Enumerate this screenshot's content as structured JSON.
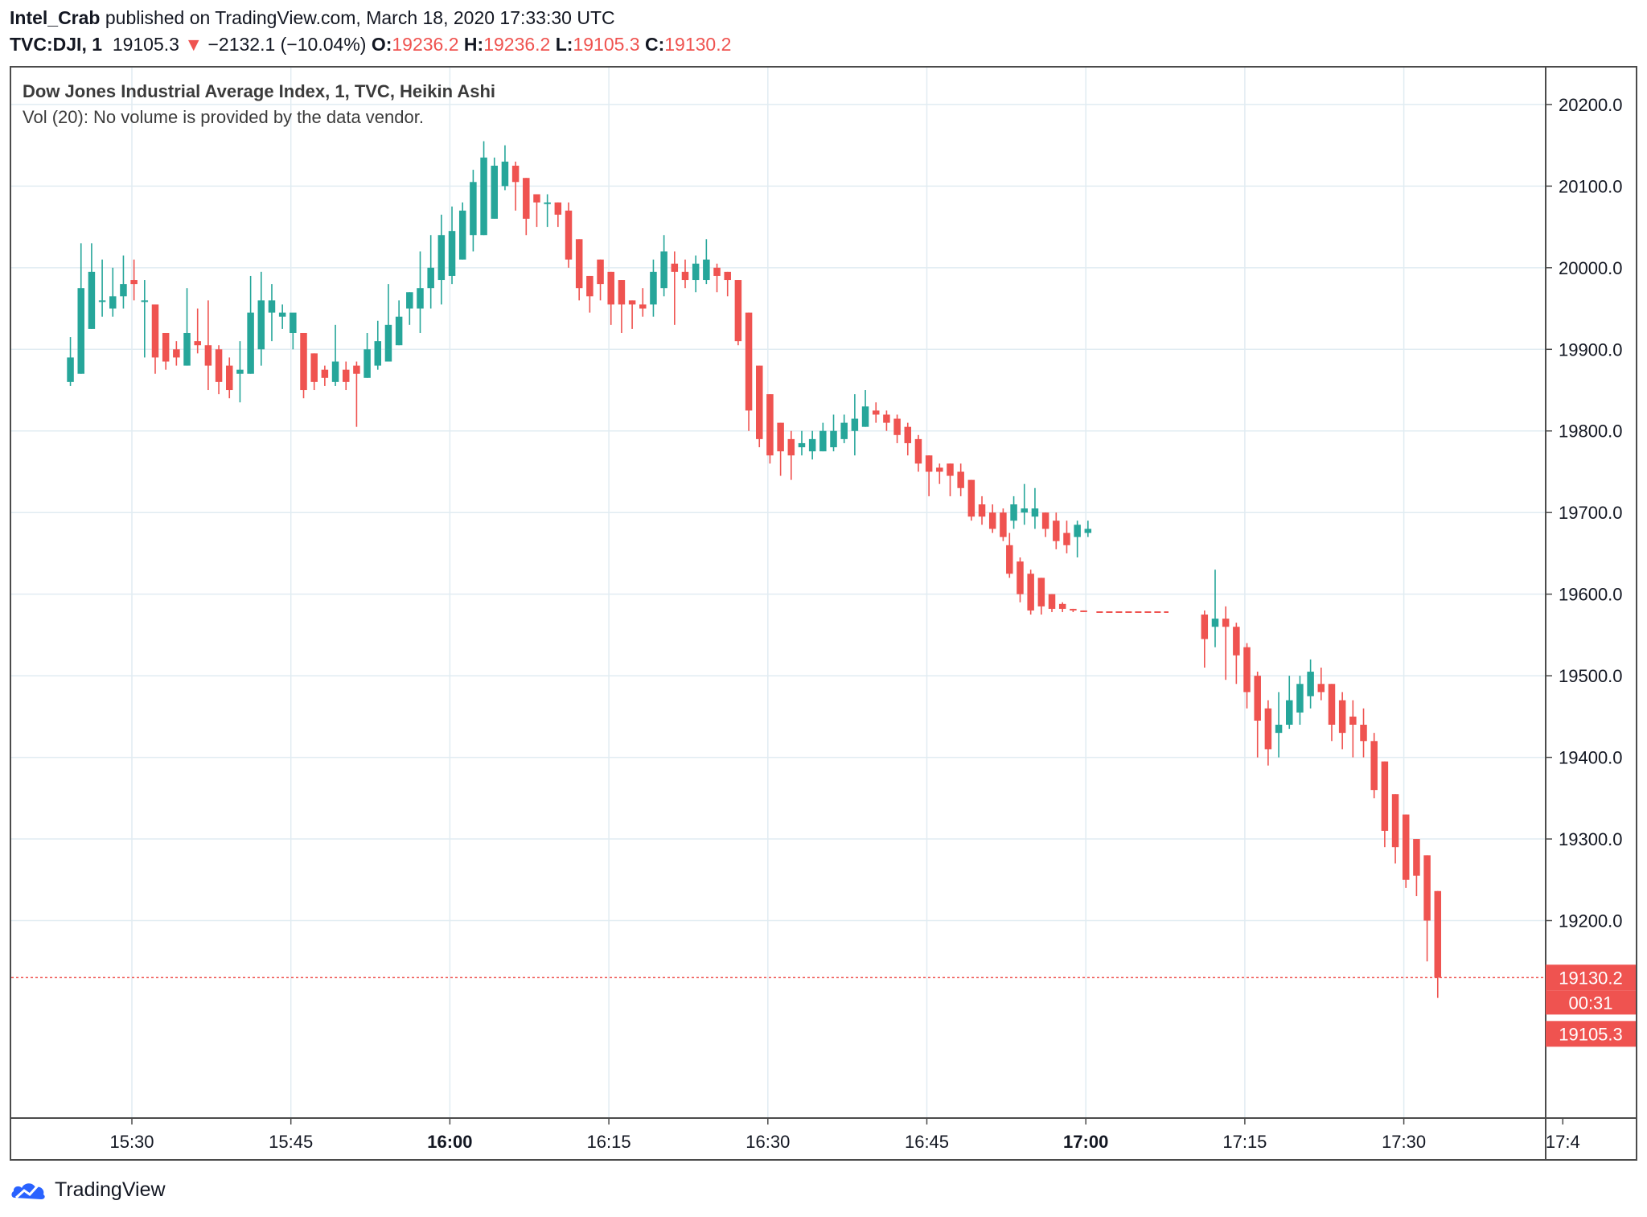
{
  "header": {
    "author": "Intel_Crab",
    "published_text": " published on TradingView.com, March 18, 2020 17:33:30 UTC",
    "symbol": "TVC:DJI, 1",
    "last": "19105.3",
    "change_arrow": "▼",
    "change": "−2132.1 (−10.04%)",
    "open_label": "O:",
    "open": "19236.2",
    "high_label": "H:",
    "high": "19236.2",
    "low_label": "L:",
    "low": "19105.3",
    "close_label": "C:",
    "close": "19130.2"
  },
  "legend": {
    "title": "Dow Jones Industrial Average Index, 1, TVC, Heikin Ashi",
    "volume": "Vol (20): No volume is provided by the data vendor."
  },
  "badges": {
    "price": "19130.2",
    "countdown": "00:31",
    "low": "19105.3"
  },
  "footer": {
    "brand": "TradingView"
  },
  "colors": {
    "up": "#26a69a",
    "down": "#ef5350",
    "grid": "#e1ecf2",
    "text": "#131722"
  },
  "chart_data": {
    "type": "candlestick",
    "title": "Dow Jones Industrial Average Index, 1, TVC, Heikin Ashi",
    "y_ticks": [
      20200,
      20100,
      20000,
      19900,
      19800,
      19700,
      19600,
      19500,
      19400,
      19300,
      19200
    ],
    "ylim": [
      19000,
      20300
    ],
    "x_ticks": [
      {
        "t": 930,
        "label": "15:30",
        "bold": false
      },
      {
        "t": 945,
        "label": "15:45",
        "bold": false
      },
      {
        "t": 960,
        "label": "16:00",
        "bold": true
      },
      {
        "t": 975,
        "label": "16:15",
        "bold": false
      },
      {
        "t": 990,
        "label": "16:30",
        "bold": false
      },
      {
        "t": 1005,
        "label": "16:45",
        "bold": false
      },
      {
        "t": 1020,
        "label": "17:00",
        "bold": true
      },
      {
        "t": 1035,
        "label": "17:15",
        "bold": false
      },
      {
        "t": 1050,
        "label": "17:30",
        "bold": false
      },
      {
        "t": 1065,
        "label": "17:4",
        "bold": false
      }
    ],
    "xlim": [
      924.2,
      1066.2
    ],
    "last_price_line": 19130.2,
    "flat_segment": {
      "t_start": 1019,
      "t_end": 1029,
      "price": 19578
    },
    "time_unit": "minutes since 00:00 (1-minute bars)",
    "candles": [
      {
        "t": 924.2,
        "o": 19860,
        "h": 19915,
        "l": 19855,
        "c": 19890
      },
      {
        "t": 925.2,
        "o": 19870,
        "h": 20030,
        "l": 19870,
        "c": 19975
      },
      {
        "t": 926.2,
        "o": 19925,
        "h": 20030,
        "l": 19925,
        "c": 19995
      },
      {
        "t": 927.2,
        "o": 19960,
        "h": 20010,
        "l": 19940,
        "c": 19960
      },
      {
        "t": 928.2,
        "o": 19950,
        "h": 20000,
        "l": 19940,
        "c": 19965
      },
      {
        "t": 929.2,
        "o": 19965,
        "h": 20015,
        "l": 19950,
        "c": 19980
      },
      {
        "t": 930.2,
        "o": 19985,
        "h": 20010,
        "l": 19960,
        "c": 19980
      },
      {
        "t": 931.2,
        "o": 19960,
        "h": 19985,
        "l": 19890,
        "c": 19960
      },
      {
        "t": 932.2,
        "o": 19955,
        "h": 19955,
        "l": 19870,
        "c": 19890
      },
      {
        "t": 933.2,
        "o": 19920,
        "h": 19920,
        "l": 19875,
        "c": 19885
      },
      {
        "t": 934.2,
        "o": 19900,
        "h": 19910,
        "l": 19880,
        "c": 19890
      },
      {
        "t": 935.2,
        "o": 19880,
        "h": 19975,
        "l": 19880,
        "c": 19920
      },
      {
        "t": 936.2,
        "o": 19910,
        "h": 19950,
        "l": 19895,
        "c": 19905
      },
      {
        "t": 937.2,
        "o": 19905,
        "h": 19960,
        "l": 19850,
        "c": 19880
      },
      {
        "t": 938.2,
        "o": 19900,
        "h": 19905,
        "l": 19845,
        "c": 19860
      },
      {
        "t": 939.2,
        "o": 19880,
        "h": 19890,
        "l": 19840,
        "c": 19850
      },
      {
        "t": 940.2,
        "o": 19870,
        "h": 19910,
        "l": 19835,
        "c": 19875
      },
      {
        "t": 941.2,
        "o": 19870,
        "h": 19990,
        "l": 19870,
        "c": 19945
      },
      {
        "t": 942.2,
        "o": 19900,
        "h": 19995,
        "l": 19880,
        "c": 19960
      },
      {
        "t": 943.2,
        "o": 19945,
        "h": 19980,
        "l": 19910,
        "c": 19960
      },
      {
        "t": 944.2,
        "o": 19940,
        "h": 19955,
        "l": 19925,
        "c": 19945
      },
      {
        "t": 945.2,
        "o": 19920,
        "h": 19940,
        "l": 19900,
        "c": 19945
      },
      {
        "t": 946.2,
        "o": 19920,
        "h": 19920,
        "l": 19840,
        "c": 19850
      },
      {
        "t": 947.2,
        "o": 19895,
        "h": 19895,
        "l": 19850,
        "c": 19860
      },
      {
        "t": 948.2,
        "o": 19875,
        "h": 19880,
        "l": 19855,
        "c": 19865
      },
      {
        "t": 949.2,
        "o": 19860,
        "h": 19930,
        "l": 19855,
        "c": 19885
      },
      {
        "t": 950.2,
        "o": 19875,
        "h": 19885,
        "l": 19850,
        "c": 19860
      },
      {
        "t": 951.2,
        "o": 19880,
        "h": 19885,
        "l": 19805,
        "c": 19870
      },
      {
        "t": 952.2,
        "o": 19865,
        "h": 19920,
        "l": 19865,
        "c": 19900
      },
      {
        "t": 953.2,
        "o": 19880,
        "h": 19935,
        "l": 19875,
        "c": 19910
      },
      {
        "t": 954.2,
        "o": 19885,
        "h": 19980,
        "l": 19885,
        "c": 19930
      },
      {
        "t": 955.2,
        "o": 19905,
        "h": 19960,
        "l": 19905,
        "c": 19940
      },
      {
        "t": 956.2,
        "o": 19950,
        "h": 19970,
        "l": 19930,
        "c": 19970
      },
      {
        "t": 957.2,
        "o": 19950,
        "h": 20020,
        "l": 19920,
        "c": 19975
      },
      {
        "t": 958.2,
        "o": 19975,
        "h": 20040,
        "l": 19950,
        "c": 20000
      },
      {
        "t": 959.2,
        "o": 19985,
        "h": 20065,
        "l": 19955,
        "c": 20040
      },
      {
        "t": 960.2,
        "o": 19990,
        "h": 20075,
        "l": 19980,
        "c": 20045
      },
      {
        "t": 961.2,
        "o": 20010,
        "h": 20080,
        "l": 20010,
        "c": 20070
      },
      {
        "t": 962.2,
        "o": 20040,
        "h": 20120,
        "l": 20020,
        "c": 20105
      },
      {
        "t": 963.2,
        "o": 20040,
        "h": 20155,
        "l": 20040,
        "c": 20135
      },
      {
        "t": 964.2,
        "o": 20060,
        "h": 20135,
        "l": 20060,
        "c": 20125
      },
      {
        "t": 965.2,
        "o": 20100,
        "h": 20150,
        "l": 20095,
        "c": 20130
      },
      {
        "t": 966.2,
        "o": 20125,
        "h": 20130,
        "l": 20070,
        "c": 20105
      },
      {
        "t": 967.2,
        "o": 20110,
        "h": 20110,
        "l": 20040,
        "c": 20060
      },
      {
        "t": 968.2,
        "o": 20090,
        "h": 20090,
        "l": 20050,
        "c": 20080
      },
      {
        "t": 969.2,
        "o": 20080,
        "h": 20090,
        "l": 20050,
        "c": 20080
      },
      {
        "t": 970.2,
        "o": 20080,
        "h": 20080,
        "l": 20050,
        "c": 20065
      },
      {
        "t": 971.2,
        "o": 20070,
        "h": 20080,
        "l": 20000,
        "c": 20010
      },
      {
        "t": 972.2,
        "o": 20035,
        "h": 20035,
        "l": 19960,
        "c": 19975
      },
      {
        "t": 973.2,
        "o": 19990,
        "h": 19990,
        "l": 19945,
        "c": 19965
      },
      {
        "t": 974.2,
        "o": 20010,
        "h": 20010,
        "l": 19960,
        "c": 19980
      },
      {
        "t": 975.2,
        "o": 19995,
        "h": 19995,
        "l": 19930,
        "c": 19955
      },
      {
        "t": 976.2,
        "o": 19985,
        "h": 19985,
        "l": 19920,
        "c": 19955
      },
      {
        "t": 977.2,
        "o": 19960,
        "h": 19960,
        "l": 19925,
        "c": 19955
      },
      {
        "t": 978.2,
        "o": 19955,
        "h": 19975,
        "l": 19940,
        "c": 19950
      },
      {
        "t": 979.2,
        "o": 19955,
        "h": 20010,
        "l": 19940,
        "c": 19995
      },
      {
        "t": 980.2,
        "o": 19975,
        "h": 20040,
        "l": 19965,
        "c": 20020
      },
      {
        "t": 981.2,
        "o": 20005,
        "h": 20020,
        "l": 19930,
        "c": 19995
      },
      {
        "t": 982.2,
        "o": 19995,
        "h": 20010,
        "l": 19975,
        "c": 19985
      },
      {
        "t": 983.2,
        "o": 19985,
        "h": 20015,
        "l": 19970,
        "c": 20005
      },
      {
        "t": 984.2,
        "o": 19985,
        "h": 20035,
        "l": 19980,
        "c": 20010
      },
      {
        "t": 985.2,
        "o": 20000,
        "h": 20005,
        "l": 19970,
        "c": 19990
      },
      {
        "t": 986.2,
        "o": 19995,
        "h": 19995,
        "l": 19965,
        "c": 19985
      },
      {
        "t": 987.2,
        "o": 19985,
        "h": 19985,
        "l": 19905,
        "c": 19910
      },
      {
        "t": 988.2,
        "o": 19945,
        "h": 19945,
        "l": 19800,
        "c": 19825
      },
      {
        "t": 989.2,
        "o": 19880,
        "h": 19880,
        "l": 19780,
        "c": 19790
      },
      {
        "t": 990.2,
        "o": 19845,
        "h": 19845,
        "l": 19760,
        "c": 19770
      },
      {
        "t": 991.2,
        "o": 19810,
        "h": 19810,
        "l": 19745,
        "c": 19775
      },
      {
        "t": 992.2,
        "o": 19790,
        "h": 19800,
        "l": 19740,
        "c": 19770
      },
      {
        "t": 993.2,
        "o": 19780,
        "h": 19800,
        "l": 19770,
        "c": 19785
      },
      {
        "t": 994.2,
        "o": 19775,
        "h": 19800,
        "l": 19765,
        "c": 19790
      },
      {
        "t": 995.2,
        "o": 19775,
        "h": 19810,
        "l": 19775,
        "c": 19800
      },
      {
        "t": 996.2,
        "o": 19780,
        "h": 19820,
        "l": 19775,
        "c": 19800
      },
      {
        "t": 997.2,
        "o": 19790,
        "h": 19820,
        "l": 19785,
        "c": 19810
      },
      {
        "t": 998.2,
        "o": 19800,
        "h": 19845,
        "l": 19770,
        "c": 19815
      },
      {
        "t": 999.2,
        "o": 19805,
        "h": 19850,
        "l": 19805,
        "c": 19830
      },
      {
        "t": 1000.2,
        "o": 19825,
        "h": 19835,
        "l": 19810,
        "c": 19820
      },
      {
        "t": 1001.2,
        "o": 19820,
        "h": 19825,
        "l": 19800,
        "c": 19810
      },
      {
        "t": 1002.2,
        "o": 19815,
        "h": 19820,
        "l": 19785,
        "c": 19795
      },
      {
        "t": 1003.2,
        "o": 19805,
        "h": 19810,
        "l": 19770,
        "c": 19785
      },
      {
        "t": 1004.2,
        "o": 19790,
        "h": 19795,
        "l": 19750,
        "c": 19760
      },
      {
        "t": 1005.2,
        "o": 19770,
        "h": 19770,
        "l": 19720,
        "c": 19750
      },
      {
        "t": 1006.2,
        "o": 19755,
        "h": 19760,
        "l": 19735,
        "c": 19750
      },
      {
        "t": 1007.2,
        "o": 19760,
        "h": 19760,
        "l": 19720,
        "c": 19745
      },
      {
        "t": 1008.2,
        "o": 19750,
        "h": 19760,
        "l": 19720,
        "c": 19730
      },
      {
        "t": 1009.2,
        "o": 19740,
        "h": 19740,
        "l": 19690,
        "c": 19695
      },
      {
        "t": 1010.2,
        "o": 19710,
        "h": 19720,
        "l": 19685,
        "c": 19695
      },
      {
        "t": 1011.2,
        "o": 19700,
        "h": 19710,
        "l": 19675,
        "c": 19680
      },
      {
        "t": 1012.2,
        "o": 19700,
        "h": 19705,
        "l": 19665,
        "c": 19670
      },
      {
        "t": 1013.2,
        "o": 19690,
        "h": 19720,
        "l": 19680,
        "c": 19710
      },
      {
        "t": 1014.2,
        "o": 19700,
        "h": 19735,
        "l": 19685,
        "c": 19705
      },
      {
        "t": 1015.2,
        "o": 19695,
        "h": 19730,
        "l": 19680,
        "c": 19705
      },
      {
        "t": 1016.2,
        "o": 19700,
        "h": 19700,
        "l": 19670,
        "c": 19680
      },
      {
        "t": 1017.2,
        "o": 19690,
        "h": 19700,
        "l": 19655,
        "c": 19665
      },
      {
        "t": 1018.2,
        "o": 19675,
        "h": 19690,
        "l": 19650,
        "c": 19660
      },
      {
        "t": 1019.2,
        "o": 19670,
        "h": 19690,
        "l": 19645,
        "c": 19685
      },
      {
        "t": 1020.2,
        "o": 19675,
        "h": 19690,
        "l": 19670,
        "c": 19680
      }
    ]
  }
}
